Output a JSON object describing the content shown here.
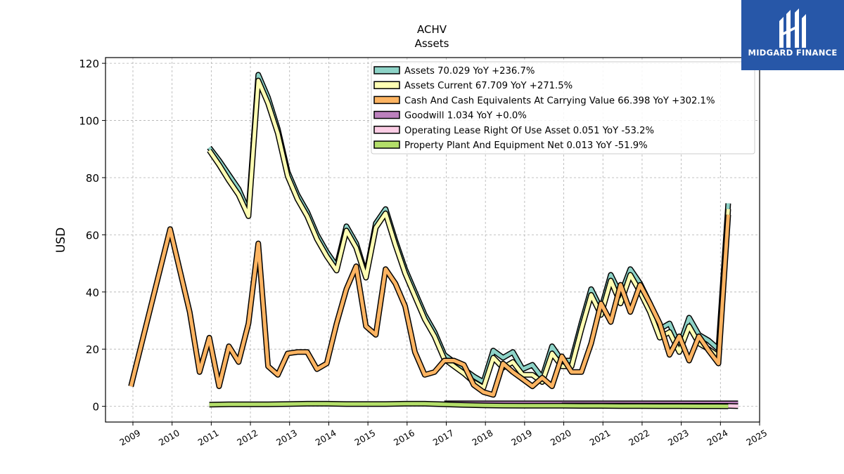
{
  "brand": {
    "name": "MIDGARD FINANCE",
    "color": "#2757a8"
  },
  "chart_data": {
    "type": "area",
    "title": "ACHV",
    "subtitle": "Assets",
    "xlabel": "",
    "ylabel": "USD",
    "xlim": [
      2008.3,
      2025.0
    ],
    "ylim": [
      -5.5,
      122
    ],
    "grid": true,
    "legend_position": "top-right",
    "x_ticks": [
      "2009",
      "2010",
      "2011",
      "2012",
      "2013",
      "2014",
      "2015",
      "2016",
      "2017",
      "2018",
      "2019",
      "2020",
      "2021",
      "2022",
      "2023",
      "2024",
      "2025"
    ],
    "y_ticks": [
      "0",
      "20",
      "40",
      "60",
      "80",
      "100",
      "120"
    ],
    "series": [
      {
        "name": "Assets",
        "legend": "Assets  70.029 YoY +236.7%",
        "color": "#8dd3c7",
        "x": [
          2010.95,
          2011.2,
          2011.45,
          2011.7,
          2011.95,
          2012.2,
          2012.45,
          2012.7,
          2012.95,
          2013.2,
          2013.45,
          2013.7,
          2013.95,
          2014.2,
          2014.45,
          2014.7,
          2014.95,
          2015.2,
          2015.45,
          2015.7,
          2015.95,
          2016.2,
          2016.45,
          2016.7,
          2016.95,
          2017.2,
          2017.45,
          2017.7,
          2017.95,
          2018.2,
          2018.45,
          2018.7,
          2018.95,
          2019.2,
          2019.45,
          2019.7,
          2019.95,
          2020.2,
          2020.45,
          2020.7,
          2020.95,
          2021.2,
          2021.45,
          2021.7,
          2021.95,
          2022.2,
          2022.45,
          2022.7,
          2022.95,
          2023.2,
          2023.45,
          2023.7,
          2023.95,
          2024.2
        ],
        "values": [
          90.5,
          86,
          81,
          76,
          68,
          116,
          108,
          97,
          82,
          74,
          68,
          60,
          54,
          49,
          63,
          57,
          46,
          64,
          69,
          58,
          48,
          40,
          32,
          26,
          18,
          15.5,
          13,
          10.5,
          8.5,
          19.5,
          17,
          19,
          13,
          14.5,
          10,
          21,
          16,
          16,
          29,
          41,
          34,
          46,
          39,
          48,
          43,
          36,
          27,
          29,
          21,
          31,
          25,
          23,
          20,
          71
        ]
      },
      {
        "name": "Assets Current",
        "legend": "Assets Current  67.709 YoY +271.5%",
        "color": "#ffffb3",
        "x": [
          2010.95,
          2011.2,
          2011.45,
          2011.7,
          2011.95,
          2012.2,
          2012.45,
          2012.7,
          2012.95,
          2013.2,
          2013.45,
          2013.7,
          2013.95,
          2014.2,
          2014.45,
          2014.7,
          2014.95,
          2015.2,
          2015.45,
          2015.7,
          2015.95,
          2016.2,
          2016.45,
          2016.7,
          2016.95,
          2017.2,
          2017.45,
          2017.7,
          2017.95,
          2018.2,
          2018.45,
          2018.7,
          2018.95,
          2019.2,
          2019.45,
          2019.7,
          2019.95,
          2020.2,
          2020.45,
          2020.7,
          2020.95,
          2021.2,
          2021.45,
          2021.7,
          2021.95,
          2022.2,
          2022.45,
          2022.7,
          2022.95,
          2023.2,
          2023.45,
          2023.7,
          2023.95,
          2024.2
        ],
        "values": [
          89.5,
          84.5,
          79,
          74,
          66.5,
          114,
          106,
          95.5,
          80.5,
          72.5,
          66.5,
          58.5,
          52.5,
          47.5,
          61.5,
          55.5,
          45,
          62.5,
          67.5,
          56.5,
          46.5,
          38.5,
          30.5,
          24.5,
          16.5,
          14,
          11.5,
          8.5,
          6.5,
          17,
          13.5,
          15.5,
          11,
          11,
          8.5,
          18.5,
          14,
          14,
          27,
          39,
          32,
          44,
          36,
          46,
          40,
          33,
          24,
          26,
          19,
          28,
          22,
          20,
          17.5,
          69
        ]
      },
      {
        "name": "Cash And Cash Equivalents At Carrying Value",
        "legend": "Cash And Cash Equivalents At Carrying Value  66.398 YoY +302.1%",
        "color": "#fdb462",
        "x": [
          2008.95,
          2009.95,
          2010.45,
          2010.7,
          2010.95,
          2011.2,
          2011.45,
          2011.7,
          2011.95,
          2012.2,
          2012.45,
          2012.7,
          2012.95,
          2013.2,
          2013.45,
          2013.7,
          2013.95,
          2014.2,
          2014.45,
          2014.7,
          2014.95,
          2015.2,
          2015.45,
          2015.7,
          2015.95,
          2016.2,
          2016.45,
          2016.7,
          2016.95,
          2017.2,
          2017.45,
          2017.7,
          2017.95,
          2018.2,
          2018.45,
          2018.7,
          2018.95,
          2019.2,
          2019.45,
          2019.7,
          2019.95,
          2020.2,
          2020.45,
          2020.7,
          2020.95,
          2021.2,
          2021.45,
          2021.7,
          2021.95,
          2022.2,
          2022.45,
          2022.7,
          2022.95,
          2023.2,
          2023.45,
          2023.7,
          2023.95,
          2024.2
        ],
        "values": [
          7,
          62,
          33,
          12,
          24,
          7,
          21,
          15.5,
          29,
          57,
          14,
          11,
          18.5,
          19,
          19,
          13,
          15,
          29,
          41,
          49,
          28,
          25,
          48,
          43,
          35,
          19,
          11,
          12,
          16,
          16,
          14.5,
          7.5,
          5,
          4,
          15,
          12,
          9.5,
          7,
          10,
          7,
          17.5,
          12,
          12,
          22,
          36,
          29.5,
          42.5,
          33,
          42.5,
          36,
          29,
          18,
          24.5,
          16,
          24.5,
          19.5,
          15,
          67
        ]
      },
      {
        "name": "Goodwill",
        "legend": "Goodwill  1.034 YoY +0.0%",
        "color": "#bc80bd",
        "x": [
          2016.95,
          2024.45
        ],
        "values": [
          1.034,
          1.034
        ]
      },
      {
        "name": "Operating Lease Right Of Use Asset",
        "legend": "Operating Lease Right Of Use Asset  0.051 YoY -53.2%",
        "color": "#fccde5",
        "x": [
          2019.95,
          2024.2,
          2024.45
        ],
        "values": [
          0.3,
          0.15,
          0.051
        ]
      },
      {
        "name": "Property Plant And Equipment Net",
        "legend": "Property Plant And Equipment Net  0.013 YoY -51.9%",
        "color": "#b3de69",
        "x": [
          2010.95,
          2011.45,
          2011.95,
          2012.45,
          2012.95,
          2013.45,
          2013.95,
          2014.45,
          2014.95,
          2015.45,
          2015.95,
          2016.45,
          2016.95,
          2017.45,
          2017.95,
          2018.45,
          2018.95,
          2019.45,
          2019.95,
          2020.45,
          2020.95,
          2021.45,
          2021.95,
          2022.45,
          2022.95,
          2023.45,
          2023.95,
          2024.2
        ],
        "values": [
          0.6,
          0.7,
          0.7,
          0.7,
          0.8,
          0.9,
          0.9,
          0.8,
          0.8,
          0.8,
          0.9,
          0.9,
          0.7,
          0.5,
          0.35,
          0.25,
          0.2,
          0.2,
          0.2,
          0.15,
          0.15,
          0.1,
          0.1,
          0.05,
          0.05,
          0.03,
          0.02,
          0.013
        ]
      }
    ]
  }
}
